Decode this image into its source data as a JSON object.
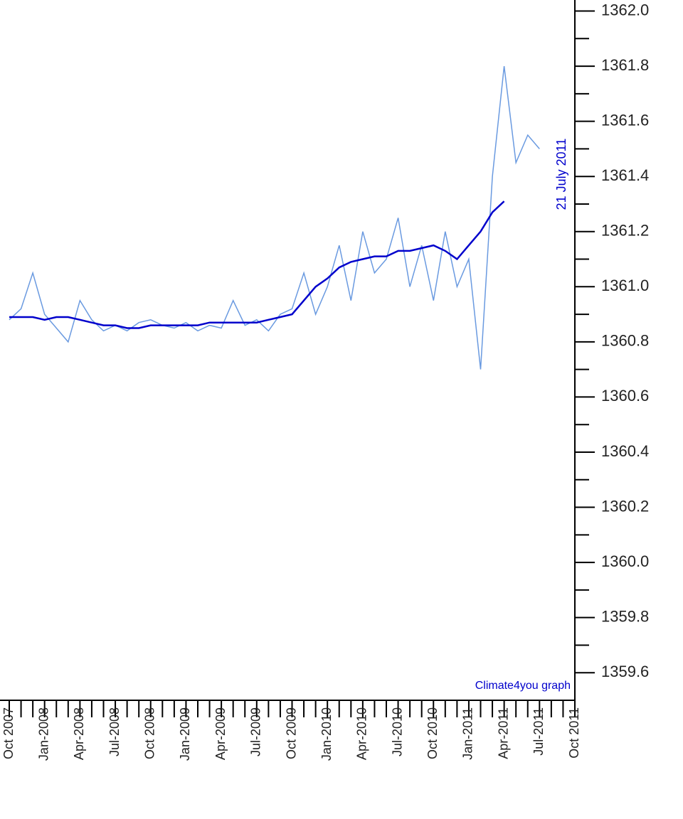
{
  "chart_data": {
    "type": "line",
    "annotations": [
      "21 July 2011",
      "Climate4you graph"
    ],
    "categories": [
      "Oct 2007",
      null,
      null,
      "Jan-2008",
      null,
      null,
      "Apr-2008",
      null,
      null,
      "Jul-2008",
      null,
      null,
      "Oct 2008",
      null,
      null,
      "Jan-2009",
      null,
      null,
      "Apr-2009",
      null,
      null,
      "Jul-2009",
      null,
      null,
      "Oct 2009",
      null,
      null,
      "Jan-2010",
      null,
      null,
      "Apr-2010",
      null,
      null,
      "Jul-2010",
      null,
      null,
      "Oct 2010",
      null,
      null,
      "Jan-2011",
      null,
      null,
      "Apr-2011",
      null,
      null,
      "Jul-2011",
      null,
      null,
      "Oct 2011"
    ],
    "series": [
      {
        "color": "#6a9ae0",
        "values": [
          1360.88,
          1360.92,
          1361.05,
          1360.9,
          1360.85,
          1360.8,
          1360.95,
          1360.88,
          1360.84,
          1360.86,
          1360.84,
          1360.87,
          1360.88,
          1360.86,
          1360.85,
          1360.87,
          1360.84,
          1360.86,
          1360.85,
          1360.95,
          1360.86,
          1360.88,
          1360.84,
          1360.9,
          1360.92,
          1361.05,
          1360.9,
          1361.0,
          1361.15,
          1360.95,
          1361.2,
          1361.05,
          1361.1,
          1361.25,
          1361.0,
          1361.15,
          1360.95,
          1361.2,
          1361.0,
          1361.1,
          1360.7,
          1361.4,
          1361.8,
          1361.45,
          1361.55,
          1361.5,
          null,
          null,
          null
        ]
      },
      {
        "color": "#0000cc",
        "values": [
          1360.89,
          1360.89,
          1360.89,
          1360.88,
          1360.89,
          1360.89,
          1360.88,
          1360.87,
          1360.86,
          1360.86,
          1360.85,
          1360.85,
          1360.86,
          1360.86,
          1360.86,
          1360.86,
          1360.86,
          1360.87,
          1360.87,
          1360.87,
          1360.87,
          1360.87,
          1360.88,
          1360.89,
          1360.9,
          1360.95,
          1361.0,
          1361.03,
          1361.07,
          1361.09,
          1361.1,
          1361.11,
          1361.11,
          1361.13,
          1361.13,
          1361.14,
          1361.15,
          1361.13,
          1361.1,
          1361.15,
          1361.2,
          1361.27,
          1361.31,
          null,
          null,
          null,
          null,
          null,
          null
        ]
      }
    ],
    "ylim": [
      1359.5,
      1362.04
    ],
    "yticks": [
      1359.6,
      1359.8,
      {
        "value": 1360,
        "label": "1360.0"
      },
      1360.2,
      1360.4,
      1360.6,
      1360.8,
      {
        "value": 1361,
        "label": "1361.0"
      },
      1361.2,
      1361.4,
      1361.6,
      1361.8,
      {
        "value": 1362,
        "label": "1362.0"
      }
    ]
  }
}
